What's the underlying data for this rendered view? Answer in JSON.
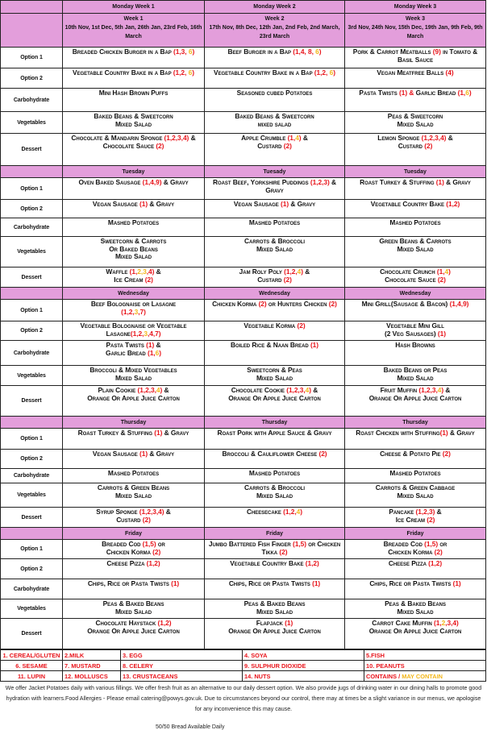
{
  "weeks": [
    {
      "header": "Monday Week 1",
      "title": "Week 1",
      "dates": "10th Nov, 1st Dec, 5th Jan, 26th Jan, 23rd Feb, 16th March"
    },
    {
      "header": "Monday Week 2",
      "title": "Week 2",
      "dates": "17th Nov, 8th Dec, 12th Jan, 2nd Feb, 2nd March, 23rd March"
    },
    {
      "header": "Monday Week 3",
      "title": "Week 3",
      "dates": "3rd Nov, 24th Nov, 15th Dec, 19th Jan, 9th Feb, 9th March"
    }
  ],
  "row_labels": [
    "Option 1",
    "Option 2",
    "Carbohydrate",
    "Vegetables",
    "Dessert"
  ],
  "allergen_colors": {
    "contains": "#e8141b",
    "may_contain": "#f3b619",
    "header": "#e39edb"
  },
  "days": [
    {
      "day": "Monday",
      "headers": null,
      "cells": [
        [
          [
            "Breaded Chicken Burger  in a Bap *(1,3, *^6^*)*"
          ],
          [
            "Beef Burger in a Bap *(1,4, 8, *^6^*)*"
          ],
          [
            "Pork & Carrot Meatballs *(9)*  in Tomato & Basil Sauce"
          ]
        ],
        [
          [
            "Vegetable Country Bake in a Bap *(1,2, *^6^*)*"
          ],
          [
            "Vegetable Country Bake in a Bap *(1,2, *^6^*)*"
          ],
          [
            "Vegan Meatfree Balls *(4)*"
          ]
        ],
        [
          [
            "Mini Hash Brown Puffs"
          ],
          [
            "Seasoned cubed Potatoes"
          ],
          [
            "Pasta Twists *(1) &* Garlic Bread *(1,*^6^*)*"
          ]
        ],
        [
          [
            "Baked Beans & Sweetcorn",
            "Mixed Salad"
          ],
          [
            "Baked Beans & Sweetcorn",
            "mixed salad"
          ],
          [
            "Peas  & Sweetcorn",
            "Mixed Salad"
          ]
        ],
        [
          [
            "Chocolate & Mandarin Sponge *(1,2,3,4)* & Chocolate Sauce *(2)*"
          ],
          [
            "Apple Crumble *(1,*^4^*)* &",
            "Custard *(2)*"
          ],
          [
            "Lemon Sponge *(1,2,3,4)* &",
            "Custard *(2)*"
          ]
        ]
      ]
    },
    {
      "day": "Tuesday",
      "headers": [
        "Tuesday",
        "Tuesady",
        "Tuesday"
      ],
      "cells": [
        [
          [
            "Oven Baked Sausage *(1,4,9)* & Gravy"
          ],
          [
            "Roast Beef, Yorkshire Puddings *(1,2,3)* & Gravy"
          ],
          [
            "Roast Turkey & Stuffing *(1)* & Gravy"
          ]
        ],
        [
          [
            "Vegan Sausage *(1)* & Gravy"
          ],
          [
            "Vegan Sausage *(1)* & Gravy"
          ],
          [
            "Vegetable Country Bake *(1,2)*"
          ]
        ],
        [
          [
            "Mashed Potatoes"
          ],
          [
            "Mashed Potatoes"
          ],
          [
            "Mashed Potatoes"
          ]
        ],
        [
          [
            "Sweetcorn & Carrots",
            "Or Baked Beans",
            "Mixed Salad"
          ],
          [
            "Carrots & Broccoli",
            "Mixed Salad"
          ],
          [
            "Green Beans & Carrots",
            "Mixed Salad"
          ]
        ],
        [
          [
            "Waffle *(1,*^2,3^*,4)*  &",
            "Ice Cream *(2)*"
          ],
          [
            "Jam Roly Poly *(1,2,*^4^*)* &",
            "Custard *(2)*"
          ],
          [
            "Chocolate Crunch *(1,*^4^*)*",
            "Chocolate Sauce *(2)*"
          ]
        ]
      ]
    },
    {
      "day": "Wednesday",
      "headers": [
        "Wednesday",
        "Wednesday",
        "Wednesday"
      ],
      "cells": [
        [
          [
            "Beef Bolognaise or Lasagne",
            "*(1,2,*^3^*,7)*"
          ],
          [
            "Chicken Korma *(2)* or  Hunters Chicken *(2)*"
          ],
          [
            "Mini Grill(Sausage & Bacon) *(1,4,9)*"
          ]
        ],
        [
          [
            "Vegetable Bolognaise or Vegetable Lasagne*(1,2,*^3^*,4,7)*"
          ],
          [
            "Vegetable Korma *(2)*"
          ],
          [
            "Vegetable Mini Gill",
            "(2 Veg Sausages) *(1)*"
          ]
        ],
        [
          [
            "Pasta Twists *(1)* &",
            "Garlic Bread *(1,*^6^*)*"
          ],
          [
            "Boiled Rice & Naan Bread *(1)*"
          ],
          [
            "Hash Browns"
          ]
        ],
        [
          [
            "Broccoli & Mixed Vegetables",
            "Mixed Salad"
          ],
          [
            "Sweetcorn & Peas",
            "Mixed Salad"
          ],
          [
            "Baked Beans or Peas",
            "Mixed Salad"
          ]
        ],
        [
          [
            "Plain Cookie *(1,2,3,*^4^*)* &",
            "Orange Or Apple Juice Carton"
          ],
          [
            "Chocolate  Cookie *(1,2,3,*^4^*)* &",
            "Orange Or Apple Juice Carton"
          ],
          [
            "Fruit Muffin *(1,2,3,*^4^*)* &",
            "Orange Or Apple Juice Carton"
          ]
        ]
      ]
    },
    {
      "day": "Thursday",
      "headers": [
        "Thursday",
        "Thursday",
        "Thursday"
      ],
      "cells": [
        [
          [
            "Roast Turkey & Stuffing *(1)* & Gravy"
          ],
          [
            "Roast Pork with Apple Sauce & Gravy"
          ],
          [
            "Roast Chicken with Stuffing*(1)* & Gravy"
          ]
        ],
        [
          [
            "Vegan Sausage *(1)* & Gravy"
          ],
          [
            "Broccoli & Cauliflower Cheese *(2)*"
          ],
          [
            "Cheese & Potato Pie *(2)*"
          ]
        ],
        [
          [
            "Mashed Potatoes"
          ],
          [
            "Mashed Potatoes"
          ],
          [
            "Mashed Potatoes"
          ]
        ],
        [
          [
            "Carrots & Green Beans",
            "Mixed Salad"
          ],
          [
            "Carrots  & Broccoli",
            "Mixed Salad"
          ],
          [
            "Carrots & Green Cabbage",
            "Mixed Salad"
          ]
        ],
        [
          [
            "Syrup Sponge *(1,2,3,4)* &",
            "Custard *(2)*"
          ],
          [
            "Cheesecake *(1,2,*^4^*)*"
          ],
          [
            "Pancake *(1,2,3)* &",
            "Ice Cream *(2)*"
          ]
        ]
      ]
    },
    {
      "day": "Friday",
      "headers": [
        "Friday",
        "Friday",
        "Friday"
      ],
      "cells": [
        [
          [
            "Breaded Cod *(1,5)* or",
            "Chicken Korma *(2)*"
          ],
          [
            "Jumbo Battered Fish Finger *(1,5)* or Chicken Tikka *(2)*"
          ],
          [
            "Breaded Cod *(1,5)* or",
            "Chicken Korma *(2)*"
          ]
        ],
        [
          [
            "Cheese Pizza *(1,2)*"
          ],
          [
            "Vegetable Country Bake *(1,2)*"
          ],
          [
            "Cheese Pizza *(1,2)*"
          ]
        ],
        [
          [
            "Chips, Rice  or Pasta Twists *(1)*"
          ],
          [
            "Chips, Rice  or Pasta Twists *(1)*"
          ],
          [
            "Chips, Rice  or Pasta Twists *(1)*"
          ]
        ],
        [
          [
            "Peas & Baked Beans",
            "Mixed Salad"
          ],
          [
            "Peas & Baked Beans",
            "Mixed Salad"
          ],
          [
            "Peas & Baked Beans",
            "Mixed Salad"
          ]
        ],
        [
          [
            "Chocolate Haystack *(1,2)*",
            "Orange Or Apple Juice Carton"
          ],
          [
            "Flapjack *(1)*",
            "Orange Or Apple Juice Carton"
          ],
          [
            "Carrot Cake Muffin *(1,*^2^*,3,4)*",
            "Orange Or Apple Juice Carton"
          ]
        ]
      ]
    }
  ],
  "allergens": [
    [
      "1. CEREAL/GLUTEN",
      "2.MILK",
      "3. EGG",
      "4. SOYA",
      "5.FISH"
    ],
    [
      "6. SESAME",
      "7. MUSTARD",
      "8. CELERY",
      "9. SULPHUR DIOXIDE",
      "10. PEANUTS"
    ],
    [
      "11. LUPIN",
      "12. MOLLUSCS",
      "13. CRUSTACEANS",
      "14. NUTS",
      ""
    ]
  ],
  "legend": {
    "contains": "CONTAINS /",
    "may_contain": " MAY CONTAIN"
  },
  "footer": {
    "note": "We offer Jacket Potatoes daily with various fillings. We offer fresh fruit as an alternative to our daily dessert option.  We also provide jugs of drinking water in our dining halls to promote good hydration with learners.Food Allergies - Please email catering@powys.gov.uk. Due to circumstances beyond our control, there may at times be a slight variance in our menus, we apologise for any inconvenience this may cause.",
    "bread": "50/50 Bread Available Daily"
  }
}
